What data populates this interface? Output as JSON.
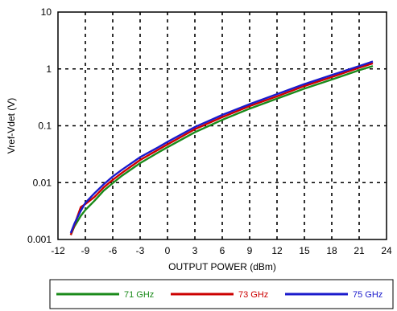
{
  "chart_data": {
    "type": "line",
    "xlabel": "OUTPUT POWER  (dBm)",
    "ylabel": "Vref-Vdet (V)",
    "xlim": [
      -12,
      24
    ],
    "ylim": [
      0.001,
      10
    ],
    "y_scale": "log",
    "grid": true,
    "grid_style": "dashed",
    "x_ticks": [
      "-12",
      "-9",
      "-6",
      "-3",
      "0",
      "3",
      "6",
      "9",
      "12",
      "15",
      "18",
      "21",
      "24"
    ],
    "y_ticks": [
      "0.001",
      "0.01",
      "0.1",
      "1",
      "10"
    ],
    "legend_position": "bottom",
    "series": [
      {
        "name": "71 GHz",
        "color": "#1a8a1a",
        "x": [
          -10.6,
          -10.2,
          -9.5,
          -9.0,
          -8.0,
          -7.0,
          -6.0,
          -5.0,
          -3.0,
          -1.0,
          0.0,
          3.0,
          6.0,
          9.0,
          12.0,
          15.0,
          18.0,
          21.0,
          22.5
        ],
        "y": [
          0.0012,
          0.0017,
          0.0026,
          0.0033,
          0.0048,
          0.0072,
          0.0098,
          0.0132,
          0.022,
          0.034,
          0.042,
          0.077,
          0.127,
          0.2,
          0.3,
          0.45,
          0.65,
          0.95,
          1.12
        ]
      },
      {
        "name": "73 GHz",
        "color": "#cc0000",
        "x": [
          -10.6,
          -10.2,
          -9.5,
          -9.0,
          -8.0,
          -7.0,
          -6.0,
          -5.0,
          -3.0,
          -1.0,
          0.0,
          3.0,
          6.0,
          9.0,
          12.0,
          15.0,
          18.0,
          21.0,
          22.5
        ],
        "y": [
          0.0012,
          0.0018,
          0.0037,
          0.0042,
          0.0056,
          0.0082,
          0.0112,
          0.0148,
          0.025,
          0.038,
          0.047,
          0.087,
          0.142,
          0.222,
          0.33,
          0.5,
          0.72,
          1.05,
          1.25
        ]
      },
      {
        "name": "75 GHz",
        "color": "#1a1acc",
        "x": [
          -10.6,
          -10.2,
          -9.5,
          -9.0,
          -8.0,
          -7.0,
          -6.0,
          -5.0,
          -3.0,
          -1.0,
          0.0,
          3.0,
          6.0,
          9.0,
          12.0,
          15.0,
          18.0,
          21.0,
          22.5
        ],
        "y": [
          0.0013,
          0.0019,
          0.0032,
          0.0044,
          0.0065,
          0.0093,
          0.0128,
          0.0168,
          0.028,
          0.042,
          0.052,
          0.095,
          0.155,
          0.24,
          0.36,
          0.54,
          0.78,
          1.12,
          1.35
        ]
      }
    ]
  }
}
